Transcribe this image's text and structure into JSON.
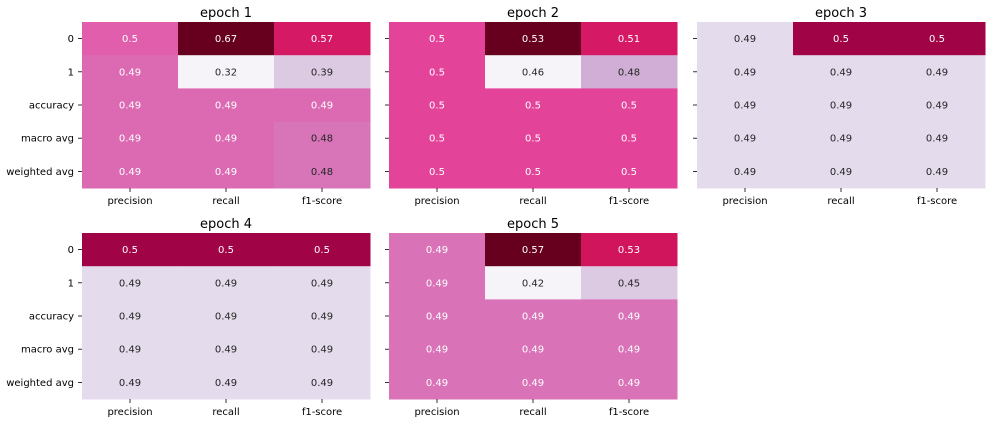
{
  "chart_data": {
    "type": "heatmap",
    "colormap": "PuRd",
    "rows": [
      "0",
      "1",
      "accuracy",
      "macro avg",
      "weighted avg"
    ],
    "columns": [
      "precision",
      "recall",
      "f1-score"
    ],
    "panels": [
      {
        "title": "epoch 1",
        "values": [
          [
            0.5,
            0.67,
            0.57
          ],
          [
            0.49,
            0.32,
            0.39
          ],
          [
            0.49,
            0.49,
            0.49
          ],
          [
            0.49,
            0.49,
            0.48
          ],
          [
            0.49,
            0.49,
            0.48
          ]
        ],
        "vmin": 0.32,
        "vmax": 0.67
      },
      {
        "title": "epoch 2",
        "values": [
          [
            0.5,
            0.53,
            0.51
          ],
          [
            0.5,
            0.46,
            0.48
          ],
          [
            0.5,
            0.5,
            0.5
          ],
          [
            0.5,
            0.5,
            0.5
          ],
          [
            0.5,
            0.5,
            0.5
          ]
        ],
        "vmin": 0.46,
        "vmax": 0.53
      },
      {
        "title": "epoch 3",
        "values": [
          [
            0.49,
            0.5,
            0.5
          ],
          [
            0.49,
            0.49,
            0.49
          ],
          [
            0.49,
            0.49,
            0.49
          ],
          [
            0.49,
            0.49,
            0.49
          ],
          [
            0.49,
            0.49,
            0.49
          ]
        ],
        "vmin": 0.488,
        "vmax": 0.502
      },
      {
        "title": "epoch 4",
        "values": [
          [
            0.5,
            0.5,
            0.5
          ],
          [
            0.49,
            0.49,
            0.49
          ],
          [
            0.49,
            0.49,
            0.49
          ],
          [
            0.49,
            0.49,
            0.49
          ],
          [
            0.49,
            0.49,
            0.49
          ]
        ],
        "vmin": 0.488,
        "vmax": 0.502
      },
      {
        "title": "epoch 5",
        "values": [
          [
            0.49,
            0.57,
            0.53
          ],
          [
            0.49,
            0.42,
            0.45
          ],
          [
            0.49,
            0.49,
            0.49
          ],
          [
            0.49,
            0.49,
            0.49
          ],
          [
            0.49,
            0.49,
            0.49
          ]
        ],
        "vmin": 0.42,
        "vmax": 0.57
      }
    ],
    "grid": false,
    "colorbar": false
  }
}
